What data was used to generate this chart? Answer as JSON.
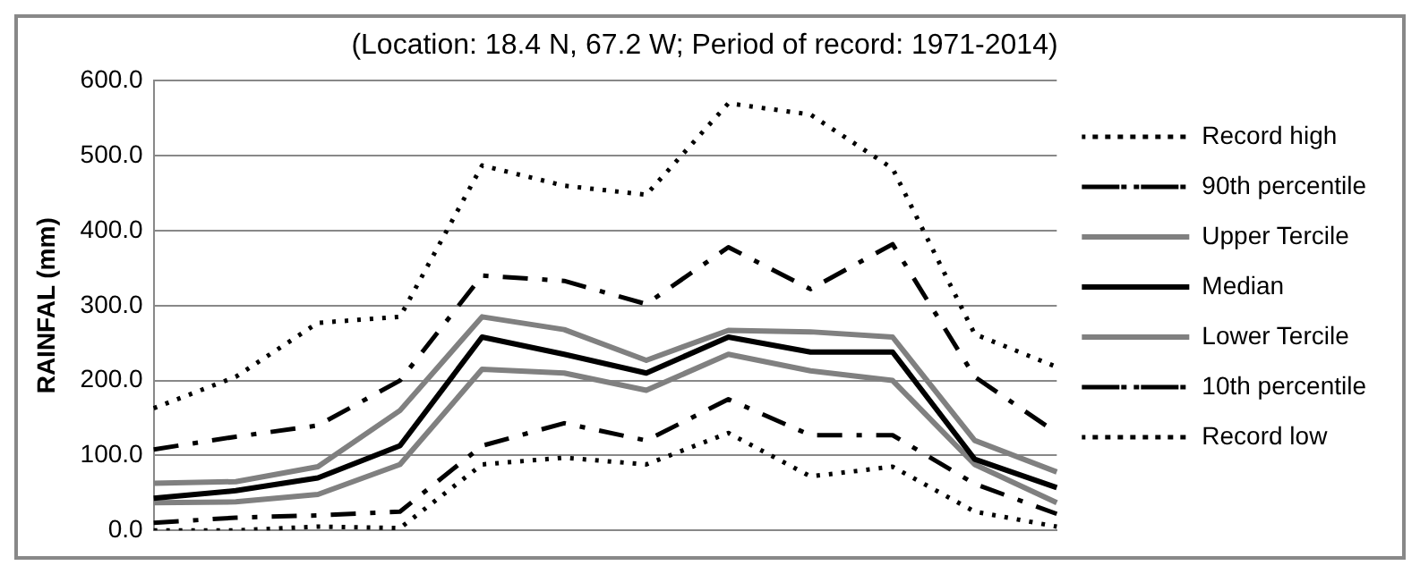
{
  "chart_data": {
    "type": "line",
    "title": "(Location: 18.4 N, 67.2 W; Period of record: 1971-2014)",
    "ylabel": "RAINFAL (mm)",
    "categories": [
      null,
      null,
      null,
      null,
      null,
      null,
      null,
      null,
      null,
      null,
      null,
      null
    ],
    "series": [
      {
        "name": "Record high",
        "color": "#000000",
        "line_style": "dotted",
        "values": [
          163,
          205,
          277,
          285,
          487,
          460,
          448,
          570,
          555,
          483,
          262,
          218
        ]
      },
      {
        "name": "90th percentile",
        "color": "#000000",
        "line_style": "dashed",
        "values": [
          108,
          125,
          140,
          200,
          340,
          333,
          302,
          378,
          322,
          382,
          205,
          130
        ]
      },
      {
        "name": "Upper Tercile",
        "color": "#808080",
        "line_style": "solid",
        "values": [
          63,
          65,
          85,
          160,
          285,
          268,
          227,
          267,
          265,
          258,
          120,
          78
        ]
      },
      {
        "name": "Median",
        "color": "#000000",
        "line_style": "solid",
        "values": [
          43,
          53,
          70,
          113,
          258,
          235,
          210,
          258,
          238,
          238,
          95,
          57
        ]
      },
      {
        "name": "Lower Tercile",
        "color": "#808080",
        "line_style": "solid",
        "values": [
          37,
          38,
          48,
          88,
          215,
          210,
          187,
          235,
          213,
          200,
          88,
          37
        ]
      },
      {
        "name": "10th percentile",
        "color": "#000000",
        "line_style": "dashed",
        "values": [
          10,
          17,
          20,
          25,
          113,
          143,
          120,
          175,
          127,
          127,
          62,
          22
        ]
      },
      {
        "name": "Record low",
        "color": "#000000",
        "line_style": "dotted",
        "values": [
          0,
          0,
          5,
          3,
          88,
          97,
          88,
          130,
          72,
          85,
          25,
          5
        ]
      }
    ],
    "ylim": [
      0,
      600
    ],
    "yticks": [
      {
        "value": 0,
        "label": "0.0"
      },
      {
        "value": 100,
        "label": "100.0"
      },
      {
        "value": 200,
        "label": "200.0"
      },
      {
        "value": 300,
        "label": "300.0"
      },
      {
        "value": 400,
        "label": "400.0"
      },
      {
        "value": 500,
        "label": "500.0"
      },
      {
        "value": 600,
        "label": "600.0"
      }
    ],
    "grid": "y",
    "legend": "right",
    "marker": "none",
    "tick_labels": "y"
  }
}
